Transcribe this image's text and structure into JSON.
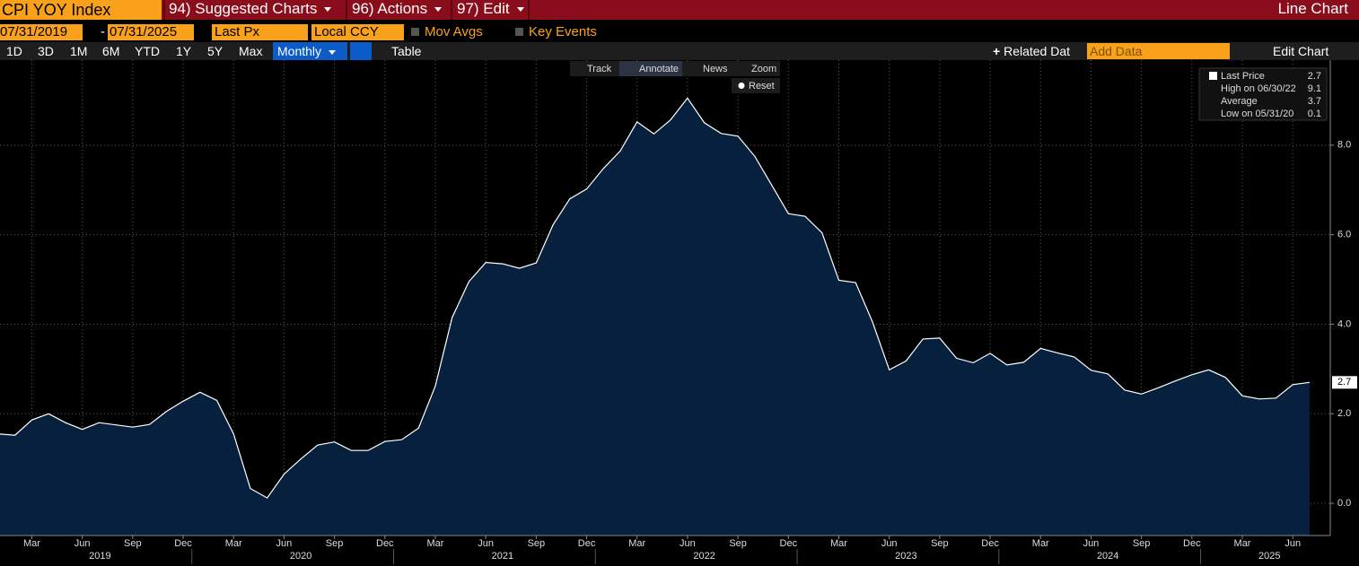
{
  "toolbar": {
    "security": "CPI YOY Index",
    "menus": [
      "94) Suggested Charts",
      "96) Actions",
      "97) Edit"
    ],
    "chart_type": "Line Chart"
  },
  "controls": {
    "start_date": "07/31/2019",
    "date_separator": "-",
    "end_date": "07/31/2025",
    "field": "Last Px",
    "currency": "Local CCY",
    "options": [
      "Mov Avgs",
      "Key Events"
    ]
  },
  "periods": [
    "1D",
    "3D",
    "1M",
    "6M",
    "YTD",
    "1Y",
    "5Y",
    "Max"
  ],
  "frequency": "Monthly",
  "table_button": "Table",
  "related": "Related Dat",
  "add_data_placeholder": "Add Data",
  "edit_chart": "Edit Chart",
  "chart_tools": [
    "Track",
    "Annotate",
    "News",
    "Zoom"
  ],
  "reset": "Reset",
  "chart_data": {
    "type": "area",
    "x": [
      "2019-01",
      "2019-02",
      "2019-03",
      "2019-04",
      "2019-05",
      "2019-06",
      "2019-07",
      "2019-08",
      "2019-09",
      "2019-10",
      "2019-11",
      "2019-12",
      "2020-01",
      "2020-02",
      "2020-03",
      "2020-04",
      "2020-05",
      "2020-06",
      "2020-07",
      "2020-08",
      "2020-09",
      "2020-10",
      "2020-11",
      "2020-12",
      "2021-01",
      "2021-02",
      "2021-03",
      "2021-04",
      "2021-05",
      "2021-06",
      "2021-07",
      "2021-08",
      "2021-09",
      "2021-10",
      "2021-11",
      "2021-12",
      "2022-01",
      "2022-02",
      "2022-03",
      "2022-04",
      "2022-05",
      "2022-06",
      "2022-07",
      "2022-08",
      "2022-09",
      "2022-10",
      "2022-11",
      "2022-12",
      "2023-01",
      "2023-02",
      "2023-03",
      "2023-04",
      "2023-05",
      "2023-06",
      "2023-07",
      "2023-08",
      "2023-09",
      "2023-10",
      "2023-11",
      "2023-12",
      "2024-01",
      "2024-02",
      "2024-03",
      "2024-04",
      "2024-05",
      "2024-06",
      "2024-07",
      "2024-08",
      "2024-09",
      "2024-10",
      "2024-11",
      "2024-12",
      "2025-01",
      "2025-02",
      "2025-03",
      "2025-04",
      "2025-05",
      "2025-06",
      "2025-07"
    ],
    "series": [
      {
        "color": "#ffffff",
        "fill": "#06203e",
        "values": [
          1.55,
          1.52,
          1.86,
          2.0,
          1.8,
          1.65,
          1.8,
          1.75,
          1.7,
          1.76,
          2.05,
          2.28,
          2.48,
          2.3,
          1.55,
          0.33,
          0.12,
          0.65,
          0.99,
          1.3,
          1.37,
          1.18,
          1.18,
          1.38,
          1.42,
          1.68,
          2.62,
          4.15,
          4.95,
          5.38,
          5.35,
          5.25,
          5.37,
          6.22,
          6.8,
          7.02,
          7.48,
          7.87,
          8.52,
          8.25,
          8.57,
          9.05,
          8.5,
          8.26,
          8.2,
          7.75,
          7.11,
          6.47,
          6.41,
          6.04,
          4.98,
          4.93,
          4.05,
          2.98,
          3.18,
          3.67,
          3.69,
          3.24,
          3.14,
          3.35,
          3.09,
          3.15,
          3.46,
          3.36,
          3.27,
          2.97,
          2.89,
          2.53,
          2.44,
          2.58,
          2.73,
          2.87,
          2.98,
          2.81,
          2.4,
          2.33,
          2.35,
          2.65,
          2.7
        ]
      }
    ],
    "ylim": [
      -0.72,
      9.9
    ],
    "yticks": [
      {
        "value": 0,
        "label": "0.0"
      },
      {
        "value": 2,
        "label": "2.0"
      },
      {
        "value": 4,
        "label": "4.0"
      },
      {
        "value": 6,
        "label": "6.0"
      },
      {
        "value": 8,
        "label": "8.0"
      }
    ],
    "xticks": [
      {
        "value": "2019-03",
        "label": "Mar"
      },
      {
        "value": "2019-06",
        "label": "Jun"
      },
      {
        "value": "2019-09",
        "label": "Sep"
      },
      {
        "value": "2019-12",
        "label": "Dec"
      },
      {
        "value": "2020-03",
        "label": "Mar"
      },
      {
        "value": "2020-06",
        "label": "Jun"
      },
      {
        "value": "2020-09",
        "label": "Sep"
      },
      {
        "value": "2020-12",
        "label": "Dec"
      },
      {
        "value": "2021-03",
        "label": "Mar"
      },
      {
        "value": "2021-06",
        "label": "Jun"
      },
      {
        "value": "2021-09",
        "label": "Sep"
      },
      {
        "value": "2021-12",
        "label": "Dec"
      },
      {
        "value": "2022-03",
        "label": "Mar"
      },
      {
        "value": "2022-06",
        "label": "Jun"
      },
      {
        "value": "2022-09",
        "label": "Sep"
      },
      {
        "value": "2022-12",
        "label": "Dec"
      },
      {
        "value": "2023-03",
        "label": "Mar"
      },
      {
        "value": "2023-06",
        "label": "Jun"
      },
      {
        "value": "2023-09",
        "label": "Sep"
      },
      {
        "value": "2023-12",
        "label": "Dec"
      },
      {
        "value": "2024-03",
        "label": "Mar"
      },
      {
        "value": "2024-06",
        "label": "Jun"
      },
      {
        "value": "2024-09",
        "label": "Sep"
      },
      {
        "value": "2024-12",
        "label": "Dec"
      },
      {
        "value": "2025-03",
        "label": "Mar"
      },
      {
        "value": "2025-06",
        "label": "Jun"
      }
    ],
    "years": [
      2019,
      2020,
      2021,
      2022,
      2023,
      2024,
      2025
    ],
    "grid": true,
    "stats": [
      {
        "label": "Last Price",
        "value": 2.7
      },
      {
        "label": "High on 06/30/22",
        "value": 9.1
      },
      {
        "label": "Average",
        "value": 3.7
      },
      {
        "label": "Low on 05/31/20",
        "value": 0.1
      }
    ]
  }
}
